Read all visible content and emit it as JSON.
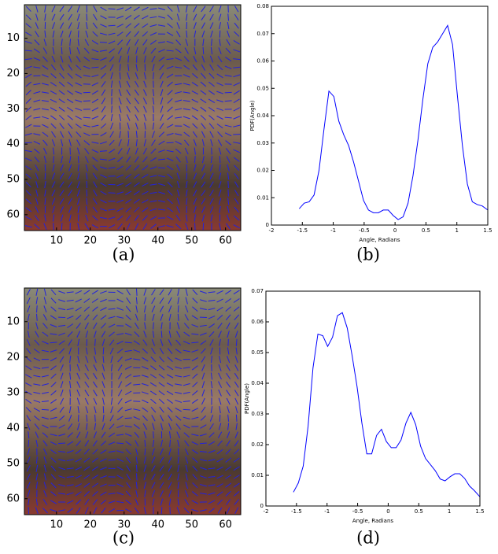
{
  "chart_data": [
    {
      "type": "image",
      "caption": "(a)",
      "xlim": [
        0.5,
        64.5
      ],
      "ylim": [
        0.5,
        64.5
      ],
      "y_reversed": true,
      "xticks": [
        10,
        20,
        30,
        40,
        50,
        60
      ],
      "yticks": [
        10,
        20,
        30,
        40,
        50,
        60
      ]
    },
    {
      "type": "line",
      "caption": "(b)",
      "xlabel": "Angle, Radians",
      "ylabel": "PDF(Angle)",
      "color": "#0000ff",
      "xlim": [
        -2,
        1.5
      ],
      "ylim": [
        0,
        0.08
      ],
      "xticks": [
        -2,
        -1.5,
        -1,
        -0.5,
        0,
        0.5,
        1,
        1.5
      ],
      "yticks": [
        0,
        0.01,
        0.02,
        0.03,
        0.04,
        0.05,
        0.06,
        0.07,
        0.08
      ],
      "x": [
        -1.55,
        -1.47,
        -1.39,
        -1.31,
        -1.23,
        -1.15,
        -1.07,
        -0.99,
        -0.91,
        -0.83,
        -0.75,
        -0.67,
        -0.59,
        -0.51,
        -0.43,
        -0.35,
        -0.27,
        -0.19,
        -0.11,
        -0.03,
        0.05,
        0.13,
        0.21,
        0.29,
        0.37,
        0.45,
        0.53,
        0.61,
        0.69,
        0.77,
        0.85,
        0.93,
        1.01,
        1.09,
        1.17,
        1.25,
        1.33,
        1.41,
        1.5
      ],
      "values": [
        0.006,
        0.008,
        0.0085,
        0.011,
        0.02,
        0.035,
        0.049,
        0.047,
        0.038,
        0.033,
        0.029,
        0.023,
        0.016,
        0.009,
        0.0055,
        0.0045,
        0.0045,
        0.0055,
        0.0055,
        0.0035,
        0.002,
        0.003,
        0.008,
        0.018,
        0.031,
        0.046,
        0.059,
        0.065,
        0.067,
        0.07,
        0.073,
        0.066,
        0.047,
        0.029,
        0.015,
        0.0085,
        0.0075,
        0.007,
        0.0055
      ]
    },
    {
      "type": "image",
      "caption": "(c)",
      "xlim": [
        0.5,
        64.5
      ],
      "ylim": [
        0.5,
        64.5
      ],
      "y_reversed": true,
      "xticks": [
        10,
        20,
        30,
        40,
        50,
        60
      ],
      "yticks": [
        10,
        20,
        30,
        40,
        50,
        60
      ]
    },
    {
      "type": "line",
      "caption": "(d)",
      "xlabel": "Angle, Radians",
      "ylabel": "PDF(Angle)",
      "color": "#0000ff",
      "xlim": [
        -2,
        1.5
      ],
      "ylim": [
        0,
        0.07
      ],
      "xticks": [
        -2,
        -1.5,
        -1,
        -0.5,
        0,
        0.5,
        1,
        1.5
      ],
      "yticks": [
        0,
        0.01,
        0.02,
        0.03,
        0.04,
        0.05,
        0.06,
        0.07
      ],
      "x": [
        -1.55,
        -1.47,
        -1.39,
        -1.31,
        -1.23,
        -1.15,
        -1.07,
        -0.99,
        -0.91,
        -0.83,
        -0.75,
        -0.67,
        -0.59,
        -0.51,
        -0.43,
        -0.35,
        -0.27,
        -0.19,
        -0.11,
        -0.03,
        0.05,
        0.13,
        0.21,
        0.29,
        0.37,
        0.45,
        0.53,
        0.61,
        0.69,
        0.77,
        0.85,
        0.93,
        1.01,
        1.09,
        1.17,
        1.25,
        1.33,
        1.41,
        1.5
      ],
      "values": [
        0.0045,
        0.0075,
        0.013,
        0.026,
        0.045,
        0.056,
        0.0555,
        0.052,
        0.055,
        0.062,
        0.063,
        0.058,
        0.049,
        0.039,
        0.027,
        0.017,
        0.017,
        0.023,
        0.025,
        0.021,
        0.019,
        0.019,
        0.0215,
        0.027,
        0.0305,
        0.0265,
        0.0195,
        0.0155,
        0.0135,
        0.0115,
        0.0088,
        0.0082,
        0.0095,
        0.0105,
        0.0105,
        0.009,
        0.0065,
        0.005,
        0.003
      ]
    }
  ]
}
